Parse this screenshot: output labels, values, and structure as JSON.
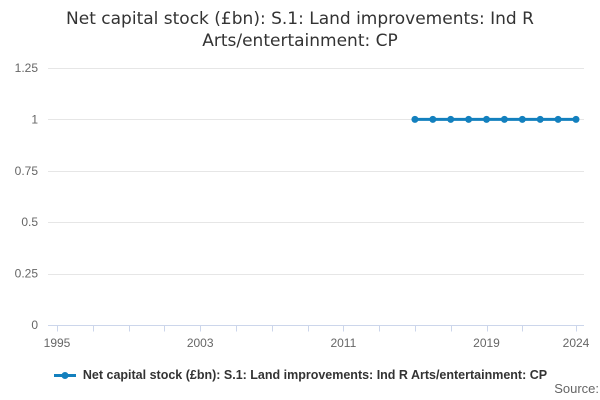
{
  "title": "Net capital stock (£bn): S.1: Land improvements: Ind R Arts/entertainment: CP",
  "source_label": "Source:",
  "colors": {
    "series_blue": "#1380be",
    "gridline": "#e6e6e6",
    "axis_line": "#ccd6eb",
    "tick_text": "#666666",
    "title_text": "#333333",
    "legend_text": "#333333",
    "source_text": "#666666",
    "background": "#ffffff"
  },
  "chart_data": {
    "type": "line",
    "title": "Net capital stock (£bn): S.1: Land improvements: Ind R Arts/entertainment: CP",
    "xlabel": "",
    "ylabel": "",
    "xlim": [
      1995,
      2024
    ],
    "ylim": [
      0,
      1.25
    ],
    "grid": true,
    "legend_position": "bottom",
    "x_ticks": [
      1995,
      1997,
      1999,
      2001,
      2003,
      2005,
      2007,
      2009,
      2011,
      2013,
      2015,
      2017,
      2019,
      2021,
      2024
    ],
    "x_labeled_ticks": [
      "1995",
      "2003",
      "2011",
      "2019",
      "2024"
    ],
    "y_ticks": [
      0,
      0.25,
      0.5,
      0.75,
      1,
      1.25
    ],
    "y_tick_labels": [
      "0",
      "0.25",
      "0.5",
      "0.75",
      "1",
      "1.25"
    ],
    "series": [
      {
        "name": "Net capital stock (£bn): S.1: Land improvements: Ind R Arts/entertainment: CP",
        "x": [
          2015,
          2016,
          2017,
          2018,
          2019,
          2020,
          2021,
          2022,
          2023,
          2024
        ],
        "values": [
          1,
          1,
          1,
          1,
          1,
          1,
          1,
          1,
          1,
          1
        ],
        "color": "#1380be",
        "marker": "circle"
      }
    ]
  }
}
